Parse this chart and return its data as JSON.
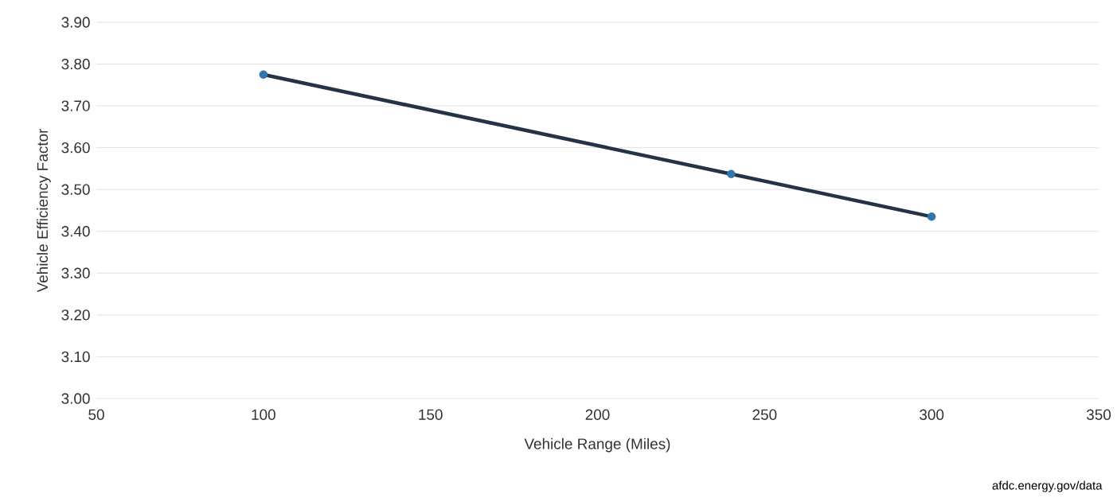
{
  "chart_data": {
    "type": "line",
    "xlabel": "Vehicle Range (Miles)",
    "ylabel": "Vehicle Efficiency Factor",
    "x": [
      100,
      240,
      300
    ],
    "series": [
      {
        "color": "#243447",
        "values": [
          3.775,
          3.537,
          3.435
        ]
      }
    ],
    "xlim": [
      50,
      350
    ],
    "xticks": [
      50,
      100,
      150,
      200,
      250,
      300,
      350
    ],
    "ylim": [
      3.0,
      3.9
    ],
    "yticks": [
      {
        "value": 3.0,
        "label": "3.00"
      },
      {
        "value": 3.1,
        "label": "3.10"
      },
      {
        "value": 3.2,
        "label": "3.20"
      },
      {
        "value": 3.3,
        "label": "3.30"
      },
      {
        "value": 3.4,
        "label": "3.40"
      },
      {
        "value": 3.5,
        "label": "3.50"
      },
      {
        "value": 3.6,
        "label": "3.60"
      },
      {
        "value": 3.7,
        "label": "3.70"
      },
      {
        "value": 3.8,
        "label": "3.80"
      },
      {
        "value": 3.9,
        "label": "3.90"
      }
    ],
    "grid": "y",
    "marker": "circle",
    "line_style": "solid",
    "legend": false,
    "annotations": [
      "afdc.energy.gov/data"
    ]
  }
}
